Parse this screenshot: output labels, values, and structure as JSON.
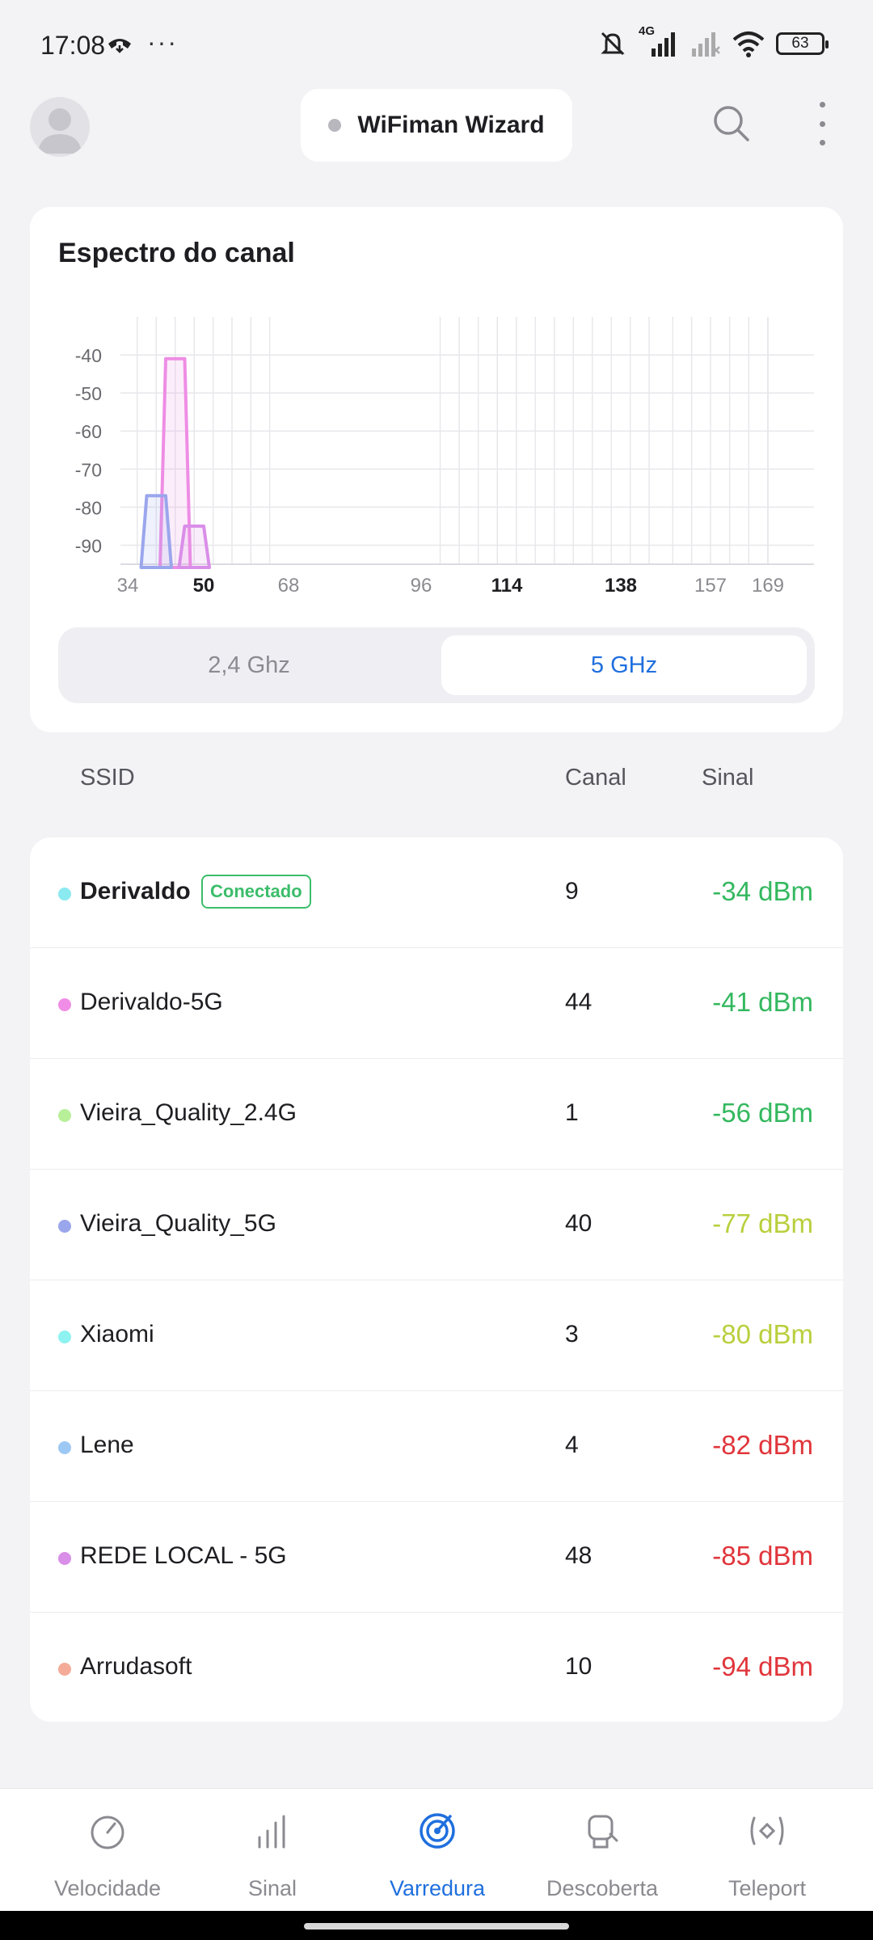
{
  "status_bar": {
    "time": "17:08",
    "overflow": "···",
    "network": "4G",
    "battery": "63",
    "icons": [
      "call-icon",
      "mute-icon",
      "signal-icon",
      "signal-weak-icon",
      "wifi-icon",
      "battery-icon"
    ]
  },
  "header": {
    "wizard_label": "WiFiman Wizard",
    "icons": [
      "avatar-icon",
      "search-icon",
      "more-vert-icon"
    ]
  },
  "spectrum": {
    "title": "Espectro do canal",
    "tabs": [
      {
        "label": "2,4 Ghz",
        "active": false
      },
      {
        "label": "5 GHz",
        "active": true
      }
    ]
  },
  "chart_data": {
    "type": "area",
    "title": "Espectro do canal",
    "xlabel": "",
    "ylabel": "",
    "y_ticks": [
      -40,
      -50,
      -60,
      -70,
      -80,
      -90
    ],
    "ylim": [
      -95,
      -30
    ],
    "x_ticks": [
      {
        "label": "34",
        "bold": false
      },
      {
        "label": "50",
        "bold": true
      },
      {
        "label": "68",
        "bold": false
      },
      {
        "label": "96",
        "bold": false
      },
      {
        "label": "114",
        "bold": true
      },
      {
        "label": "138",
        "bold": true
      },
      {
        "label": "157",
        "bold": false
      },
      {
        "label": "169",
        "bold": false
      }
    ],
    "grid": true,
    "series": [
      {
        "ssid": "Derivaldo-5G",
        "channel": 44,
        "signal": -41,
        "color": "#ee8de4"
      },
      {
        "ssid": "Vieira_Quality_5G",
        "channel": 40,
        "signal": -77,
        "color": "#9aa6ec"
      },
      {
        "ssid": "REDE LOCAL - 5G",
        "channel": 48,
        "signal": -85,
        "color": "#d98ee8"
      }
    ]
  },
  "list": {
    "headers": {
      "ssid": "SSID",
      "canal": "Canal",
      "sinal": "Sinal"
    },
    "connected_label": "Conectado",
    "rows": [
      {
        "ssid": "Derivaldo",
        "canal": "9",
        "signal": "-34 dBm",
        "dot": "#8be9f0",
        "signal_color": "#34b85f",
        "connected": true
      },
      {
        "ssid": "Derivaldo-5G",
        "canal": "44",
        "signal": "-41 dBm",
        "dot": "#f08de6",
        "signal_color": "#34b85f",
        "connected": false
      },
      {
        "ssid": "Vieira_Quality_2.4G",
        "canal": "1",
        "signal": "-56 dBm",
        "dot": "#b8f09a",
        "signal_color": "#34b85f",
        "connected": false
      },
      {
        "ssid": "Vieira_Quality_5G",
        "canal": "40",
        "signal": "-77 dBm",
        "dot": "#9aa6ec",
        "signal_color": "#b9cf3c",
        "connected": false
      },
      {
        "ssid": "Xiaomi",
        "canal": "3",
        "signal": "-80 dBm",
        "dot": "#8ef2f0",
        "signal_color": "#b9cf3c",
        "connected": false
      },
      {
        "ssid": "Lene",
        "canal": "4",
        "signal": "-82 dBm",
        "dot": "#9ec8f4",
        "signal_color": "#e0353b",
        "connected": false
      },
      {
        "ssid": "REDE LOCAL - 5G",
        "canal": "48",
        "signal": "-85 dBm",
        "dot": "#d98ee8",
        "signal_color": "#e0353b",
        "connected": false
      },
      {
        "ssid": "Arrudasoft",
        "canal": "10",
        "signal": "-94 dBm",
        "dot": "#f4ab98",
        "signal_color": "#e0353b",
        "connected": false
      }
    ]
  },
  "bottom_nav": {
    "items": [
      {
        "label": "Velocidade",
        "icon": "speedometer-icon",
        "active": false
      },
      {
        "label": "Sinal",
        "icon": "signal-bars-icon",
        "active": false
      },
      {
        "label": "Varredura",
        "icon": "radar-icon",
        "active": true
      },
      {
        "label": "Descoberta",
        "icon": "discovery-icon",
        "active": false
      },
      {
        "label": "Teleport",
        "icon": "teleport-icon",
        "active": false
      }
    ]
  },
  "colors": {
    "accent": "#1f6fde",
    "good": "#34b85f",
    "medium": "#b9cf3c",
    "bad": "#e0353b"
  }
}
